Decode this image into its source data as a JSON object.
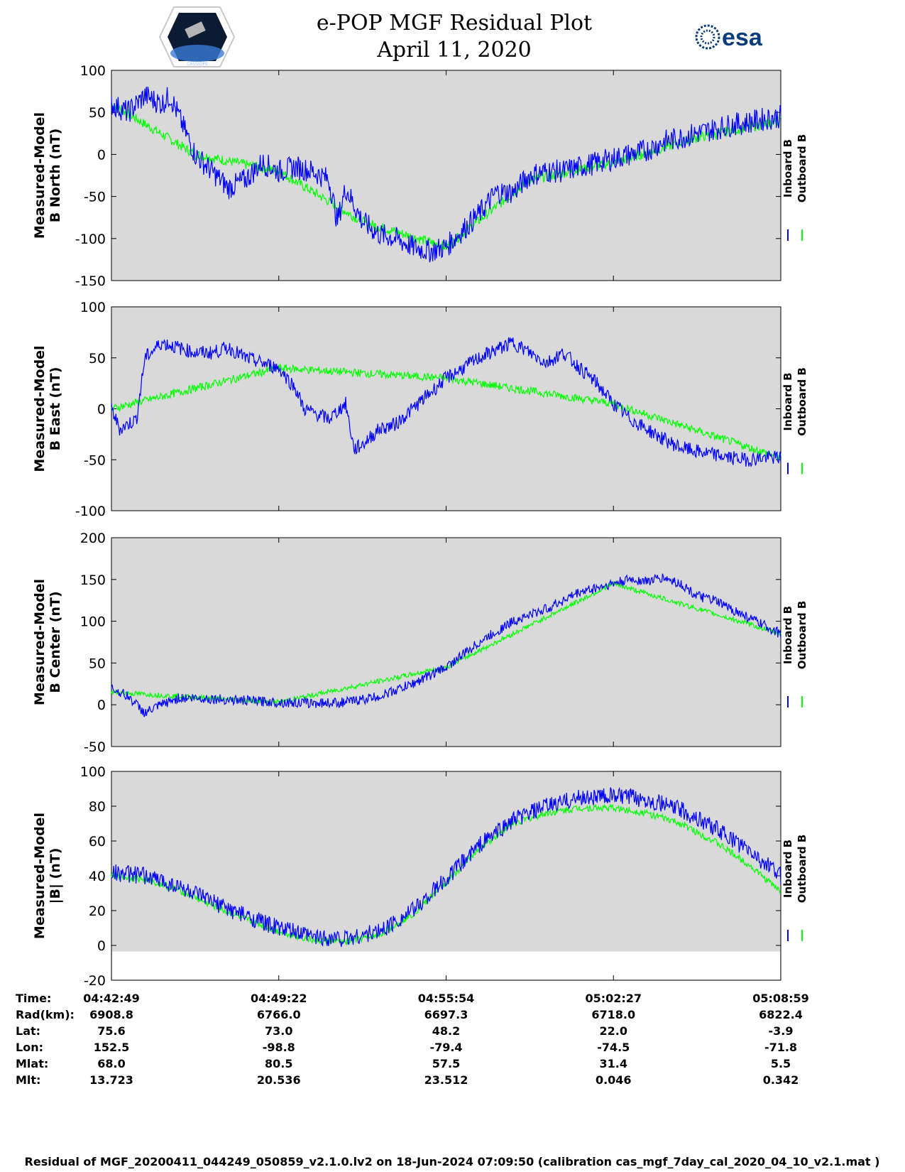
{
  "header": {
    "title": "e-POP MGF Residual Plot",
    "date": "April 11, 2020",
    "logo_left_caption": "CASSIOPE",
    "logo_right_text": "esa"
  },
  "colors": {
    "inboard": "#0000ff",
    "outboard": "#00ff00",
    "plot_bg": "#d9d9d9"
  },
  "chart_data": [
    {
      "type": "line",
      "ylabel_line1": "Measured-Model",
      "ylabel_line2": "B North (nT)",
      "ylim": [
        -150,
        100
      ],
      "yticks": [
        100,
        50,
        0,
        -50,
        -100,
        -150
      ],
      "xlim": [
        0,
        4
      ],
      "legend": [
        "Inboard B",
        "Outboard B"
      ],
      "series": [
        {
          "name": "Inboard B",
          "x": [
            0,
            0.1,
            0.2,
            0.3,
            0.35,
            0.5,
            0.6,
            0.7,
            0.8,
            0.9,
            1.0,
            1.1,
            1.2,
            1.3,
            1.35,
            1.4,
            1.5,
            1.6,
            1.7,
            1.8,
            1.9,
            2.0,
            2.1,
            2.2,
            2.3,
            2.4,
            2.5,
            2.6,
            2.7,
            2.8,
            2.9,
            3.0,
            3.1,
            3.2,
            3.3,
            3.4,
            3.5,
            3.6,
            3.7,
            3.8,
            3.9,
            4.0
          ],
          "y": [
            60,
            50,
            70,
            60,
            70,
            0,
            -20,
            -40,
            -30,
            -10,
            -20,
            -15,
            -20,
            -30,
            -80,
            -40,
            -80,
            -95,
            -100,
            -110,
            -115,
            -110,
            -90,
            -70,
            -45,
            -45,
            -25,
            -20,
            -20,
            -15,
            -10,
            -5,
            0,
            5,
            15,
            20,
            25,
            30,
            35,
            38,
            42,
            45
          ],
          "amp": 14
        },
        {
          "name": "Outboard B",
          "x": [
            0,
            0.5,
            1.0,
            1.5,
            2.0,
            2.5,
            3.0,
            3.5,
            4.0
          ],
          "y": [
            60,
            0,
            -20,
            -80,
            -110,
            -30,
            -10,
            20,
            40
          ],
          "amp": 6
        }
      ]
    },
    {
      "type": "line",
      "ylabel_line1": "Measured-Model",
      "ylabel_line2": "B East (nT)",
      "ylim": [
        -100,
        100
      ],
      "yticks": [
        100,
        50,
        0,
        -50,
        -100
      ],
      "xlim": [
        0,
        4
      ],
      "legend": [
        "Inboard B",
        "Outboard B"
      ],
      "series": [
        {
          "name": "Inboard B",
          "x": [
            0,
            0.05,
            0.15,
            0.2,
            0.3,
            0.4,
            0.5,
            0.6,
            0.7,
            0.8,
            0.9,
            1.0,
            1.1,
            1.15,
            1.3,
            1.4,
            1.45,
            1.5,
            1.6,
            1.7,
            1.8,
            1.9,
            2.0,
            2.1,
            2.2,
            2.3,
            2.4,
            2.5,
            2.6,
            2.7,
            2.8,
            2.9,
            3.0,
            3.1,
            3.2,
            3.3,
            3.4,
            3.5,
            3.6,
            3.7,
            3.8,
            3.9,
            4.0
          ],
          "y": [
            0,
            -20,
            -10,
            50,
            65,
            60,
            55,
            55,
            60,
            50,
            45,
            40,
            20,
            0,
            -10,
            5,
            -40,
            -35,
            -20,
            -15,
            0,
            15,
            30,
            40,
            50,
            58,
            65,
            55,
            45,
            55,
            40,
            25,
            5,
            -10,
            -20,
            -30,
            -38,
            -42,
            -45,
            -48,
            -50,
            -48,
            -48
          ],
          "amp": 7
        },
        {
          "name": "Outboard B",
          "x": [
            0,
            1,
            2,
            3,
            4
          ],
          "y": [
            0,
            40,
            30,
            5,
            -48
          ],
          "amp": 4
        }
      ]
    },
    {
      "type": "line",
      "ylabel_line1": "Measured-Model",
      "ylabel_line2": "B Center (nT)",
      "ylim": [
        -50,
        200
      ],
      "yticks": [
        200,
        150,
        100,
        50,
        0,
        -50
      ],
      "xlim": [
        0,
        4
      ],
      "legend": [
        "Inboard B",
        "Outboard B"
      ],
      "series": [
        {
          "name": "Inboard B",
          "x": [
            0,
            0.1,
            0.2,
            0.3,
            0.4,
            0.5,
            0.6,
            0.8,
            1.0,
            1.2,
            1.4,
            1.6,
            1.8,
            2.0,
            2.2,
            2.4,
            2.6,
            2.8,
            3.0,
            3.1,
            3.2,
            3.3,
            3.4,
            3.5,
            3.6,
            3.7,
            3.8,
            3.9,
            4.0
          ],
          "y": [
            20,
            10,
            -10,
            0,
            8,
            8,
            7,
            5,
            3,
            2,
            3,
            10,
            25,
            45,
            75,
            100,
            115,
            135,
            145,
            150,
            148,
            152,
            145,
            130,
            125,
            115,
            105,
            95,
            85
          ],
          "amp": 6
        },
        {
          "name": "Outboard B",
          "x": [
            0,
            1,
            2,
            3,
            4
          ],
          "y": [
            15,
            3,
            45,
            145,
            85
          ],
          "amp": 3
        }
      ]
    },
    {
      "type": "line",
      "ylabel_line1": "Measured-Model",
      "ylabel_line2": "|B| (nT)",
      "ylim": [
        -20,
        100
      ],
      "yticks": [
        100,
        80,
        60,
        40,
        20,
        0,
        -20
      ],
      "xlim": [
        0,
        4
      ],
      "legend": [
        "Inboard B",
        "Outboard B"
      ],
      "series": [
        {
          "name": "Inboard B",
          "x": [
            0,
            0.2,
            0.4,
            0.6,
            0.8,
            1.0,
            1.2,
            1.4,
            1.6,
            1.8,
            2.0,
            2.2,
            2.4,
            2.6,
            2.8,
            3.0,
            3.2,
            3.4,
            3.6,
            3.8,
            4.0
          ],
          "y": [
            42,
            40,
            34,
            25,
            17,
            10,
            5,
            4,
            8,
            20,
            38,
            58,
            72,
            80,
            85,
            86,
            84,
            78,
            68,
            55,
            40
          ],
          "amp": 5
        },
        {
          "name": "Outboard B",
          "x": [
            0,
            0.2,
            0.4,
            0.6,
            0.8,
            1.0,
            1.2,
            1.4,
            1.6,
            1.8,
            2.0,
            2.2,
            2.4,
            2.6,
            2.8,
            3.0,
            3.2,
            3.4,
            3.6,
            3.8,
            4.0
          ],
          "y": [
            40,
            38,
            32,
            23,
            15,
            8,
            3,
            2,
            6,
            18,
            36,
            56,
            70,
            76,
            79,
            79,
            76,
            70,
            60,
            47,
            31
          ],
          "amp": 2
        }
      ]
    }
  ],
  "orbit_table": {
    "row_labels": [
      "Time:",
      "Rad(km):",
      "Lat:",
      "Lon:",
      "Mlat:",
      "Mlt:"
    ],
    "columns": [
      {
        "Time": "04:42:49",
        "Rad": "6908.8",
        "Lat": "75.6",
        "Lon": "152.5",
        "Mlat": "68.0",
        "Mlt": "13.723"
      },
      {
        "Time": "04:49:22",
        "Rad": "6766.0",
        "Lat": "73.0",
        "Lon": "-98.8",
        "Mlat": "80.5",
        "Mlt": "20.536"
      },
      {
        "Time": "04:55:54",
        "Rad": "6697.3",
        "Lat": "48.2",
        "Lon": "-79.4",
        "Mlat": "57.5",
        "Mlt": "23.512"
      },
      {
        "Time": "05:02:27",
        "Rad": "6718.0",
        "Lat": "22.0",
        "Lon": "-74.5",
        "Mlat": "31.4",
        "Mlt": "0.046"
      },
      {
        "Time": "05:08:59",
        "Rad": "6822.4",
        "Lat": "-3.9",
        "Lon": "-71.8",
        "Mlat": "5.5",
        "Mlt": "0.342"
      }
    ]
  },
  "footer": "Residual of MGF_20200411_044249_050859_v2.1.0.lv2 on 18-Jun-2024 07:09:50 (calibration cas_mgf_7day_cal_2020_04_10_v2.1.mat )"
}
